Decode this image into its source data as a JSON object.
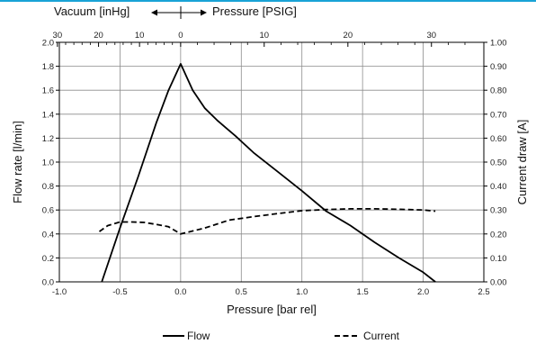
{
  "chart_data": {
    "type": "line",
    "xlabel": "Pressure [bar rel]",
    "ylabel_left": "Flow rate [l/min]",
    "ylabel_right": "Current draw [A]",
    "xlim": [
      -1.0,
      2.5
    ],
    "ylim_left": [
      0.0,
      2.0
    ],
    "ylim_right": [
      0.0,
      1.0
    ],
    "x_ticks": [
      "-1.0",
      "-0.5",
      "0.0",
      "0.5",
      "1.0",
      "1.5",
      "2.0",
      "2.5"
    ],
    "y_left_ticks": [
      "0.0",
      "0.2",
      "0.4",
      "0.6",
      "0.8",
      "1.0",
      "1.2",
      "1.4",
      "1.6",
      "1.8",
      "2.0"
    ],
    "y_right_ticks": [
      "0.00",
      "0.10",
      "0.20",
      "0.30",
      "0.40",
      "0.50",
      "0.60",
      "0.70",
      "0.80",
      "0.90",
      "1.00"
    ],
    "grid": true,
    "legend_position": "bottom",
    "top_axis": {
      "vacuum_label": "Vacuum [inHg]",
      "pressure_label": "Pressure [PSIG]",
      "vacuum_ticks": [
        {
          "label": "30",
          "bar": -1.016
        },
        {
          "label": "20",
          "bar": -0.677
        },
        {
          "label": "10",
          "bar": -0.339
        }
      ],
      "pressure_ticks": [
        {
          "label": "0",
          "bar": 0.0
        },
        {
          "label": "10",
          "bar": 0.689
        },
        {
          "label": "20",
          "bar": 1.379
        },
        {
          "label": "30",
          "bar": 2.068
        }
      ]
    },
    "series": [
      {
        "name": "Flow",
        "axis": "left",
        "style": "solid",
        "color": "#000000",
        "x": [
          -0.65,
          -0.5,
          -0.35,
          -0.2,
          -0.1,
          0.0,
          0.1,
          0.2,
          0.3,
          0.45,
          0.6,
          0.8,
          1.0,
          1.2,
          1.4,
          1.6,
          1.8,
          2.0,
          2.1
        ],
        "y": [
          0.0,
          0.45,
          0.88,
          1.33,
          1.6,
          1.82,
          1.6,
          1.45,
          1.35,
          1.22,
          1.08,
          0.92,
          0.76,
          0.59,
          0.47,
          0.33,
          0.2,
          0.08,
          0.0
        ]
      },
      {
        "name": "Current",
        "axis": "right",
        "style": "dashed",
        "color": "#000000",
        "x": [
          -0.67,
          -0.6,
          -0.5,
          -0.4,
          -0.3,
          -0.2,
          -0.1,
          0.0,
          0.2,
          0.4,
          0.6,
          0.8,
          1.0,
          1.2,
          1.4,
          1.6,
          1.8,
          2.0,
          2.1
        ],
        "y": [
          0.21,
          0.235,
          0.25,
          0.25,
          0.248,
          0.24,
          0.23,
          0.2,
          0.225,
          0.258,
          0.272,
          0.285,
          0.297,
          0.302,
          0.305,
          0.305,
          0.303,
          0.3,
          0.295
        ]
      }
    ]
  }
}
